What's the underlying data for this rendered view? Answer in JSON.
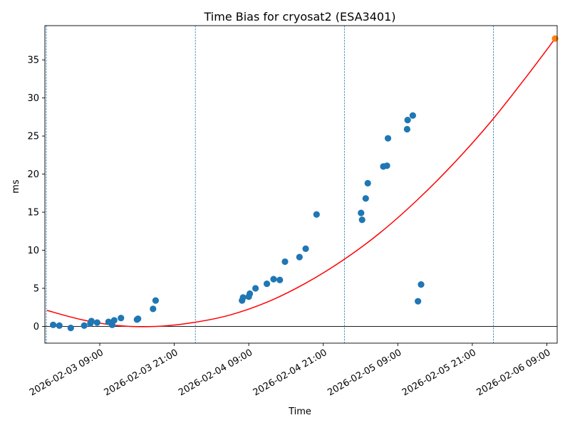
{
  "chart_data": {
    "type": "scatter",
    "title": "Time Bias for cryosat2 (ESA3401)",
    "xlabel": "Time",
    "ylabel": "ms",
    "xlim": [
      "2026-02-03 00:10",
      "2026-02-06 10:40"
    ],
    "ylim": [
      -2.2,
      39.5
    ],
    "grid": false,
    "x_ticks": [
      "2026-02-03 09:00",
      "2026-02-03 21:00",
      "2026-02-04 09:00",
      "2026-02-04 21:00",
      "2026-02-05 09:00",
      "2026-02-05 21:00",
      "2026-02-06 09:00"
    ],
    "x_tick_labels": [
      "2026-02-03 09:00",
      "2026-02-03 21:00",
      "2026-02-04 09:00",
      "2026-02-04 21:00",
      "2026-02-05 09:00",
      "2026-02-05 21:00",
      "2026-02-06 09:00"
    ],
    "y_ticks": [
      0,
      5,
      10,
      15,
      20,
      25,
      30,
      35
    ],
    "y_tick_labels": [
      "0",
      "5",
      "10",
      "15",
      "20",
      "25",
      "30",
      "35"
    ],
    "vertical_lines": [
      "2026-02-03 00:24",
      "2026-02-04 00:24",
      "2026-02-05 00:24",
      "2026-02-06 00:24"
    ],
    "zero_line": 0,
    "colors": {
      "observed": "#1f77b4",
      "predicted": "#ff7f0e",
      "fit": "#ff0000",
      "vlines": "#1f77b4",
      "zero_line": "#000000"
    },
    "series": [
      {
        "type": "scatter",
        "color": "#1f77b4",
        "x": [
          "2026-02-03 01:30",
          "2026-02-03 02:30",
          "2026-02-03 04:20",
          "2026-02-03 06:30",
          "2026-02-03 07:30",
          "2026-02-03 07:40",
          "2026-02-03 08:35",
          "2026-02-03 10:25",
          "2026-02-03 11:00",
          "2026-02-03 11:20",
          "2026-02-03 12:25",
          "2026-02-03 15:00",
          "2026-02-03 15:10",
          "2026-02-03 17:35",
          "2026-02-03 18:00",
          "2026-02-04 07:55",
          "2026-02-04 08:05",
          "2026-02-04 09:00",
          "2026-02-04 09:10",
          "2026-02-04 10:05",
          "2026-02-04 11:55",
          "2026-02-04 13:00",
          "2026-02-04 14:00",
          "2026-02-04 14:50",
          "2026-02-04 17:10",
          "2026-02-04 18:10",
          "2026-02-04 19:55",
          "2026-02-05 03:05",
          "2026-02-05 03:15",
          "2026-02-05 03:50",
          "2026-02-05 04:10",
          "2026-02-05 06:40",
          "2026-02-05 07:15",
          "2026-02-05 07:25",
          "2026-02-05 10:30",
          "2026-02-05 10:35",
          "2026-02-05 11:25",
          "2026-02-05 12:15",
          "2026-02-05 12:45"
        ],
        "y": [
          0.2,
          0.1,
          -0.2,
          0.1,
          0.4,
          0.7,
          0.5,
          0.6,
          0.2,
          0.8,
          1.1,
          0.9,
          1.0,
          2.3,
          3.4,
          3.4,
          3.8,
          3.9,
          4.3,
          5.0,
          5.6,
          6.2,
          6.1,
          8.5,
          9.1,
          10.2,
          14.7,
          14.9,
          14.0,
          16.8,
          18.8,
          21.0,
          21.1,
          24.7,
          25.9,
          27.1,
          27.7,
          3.3,
          5.5
        ]
      },
      {
        "type": "scatter",
        "color": "#ff7f0e",
        "x": [
          "2026-02-06 10:20"
        ],
        "y": [
          37.8
        ]
      },
      {
        "type": "line",
        "color": "#ff0000",
        "x": [
          "2026-02-03 00:30",
          "2026-02-03 06:00",
          "2026-02-03 12:00",
          "2026-02-03 18:00",
          "2026-02-04 00:00",
          "2026-02-04 06:00",
          "2026-02-04 12:00",
          "2026-02-04 18:00",
          "2026-02-05 00:00",
          "2026-02-05 06:00",
          "2026-02-05 12:00",
          "2026-02-05 18:00",
          "2026-02-06 00:00",
          "2026-02-06 06:00",
          "2026-02-06 10:20"
        ],
        "y": [
          2.1,
          0.9,
          0.1,
          0.0,
          0.5,
          1.5,
          3.2,
          5.6,
          8.6,
          12.2,
          16.5,
          21.4,
          26.9,
          33.1,
          37.8
        ]
      }
    ]
  }
}
